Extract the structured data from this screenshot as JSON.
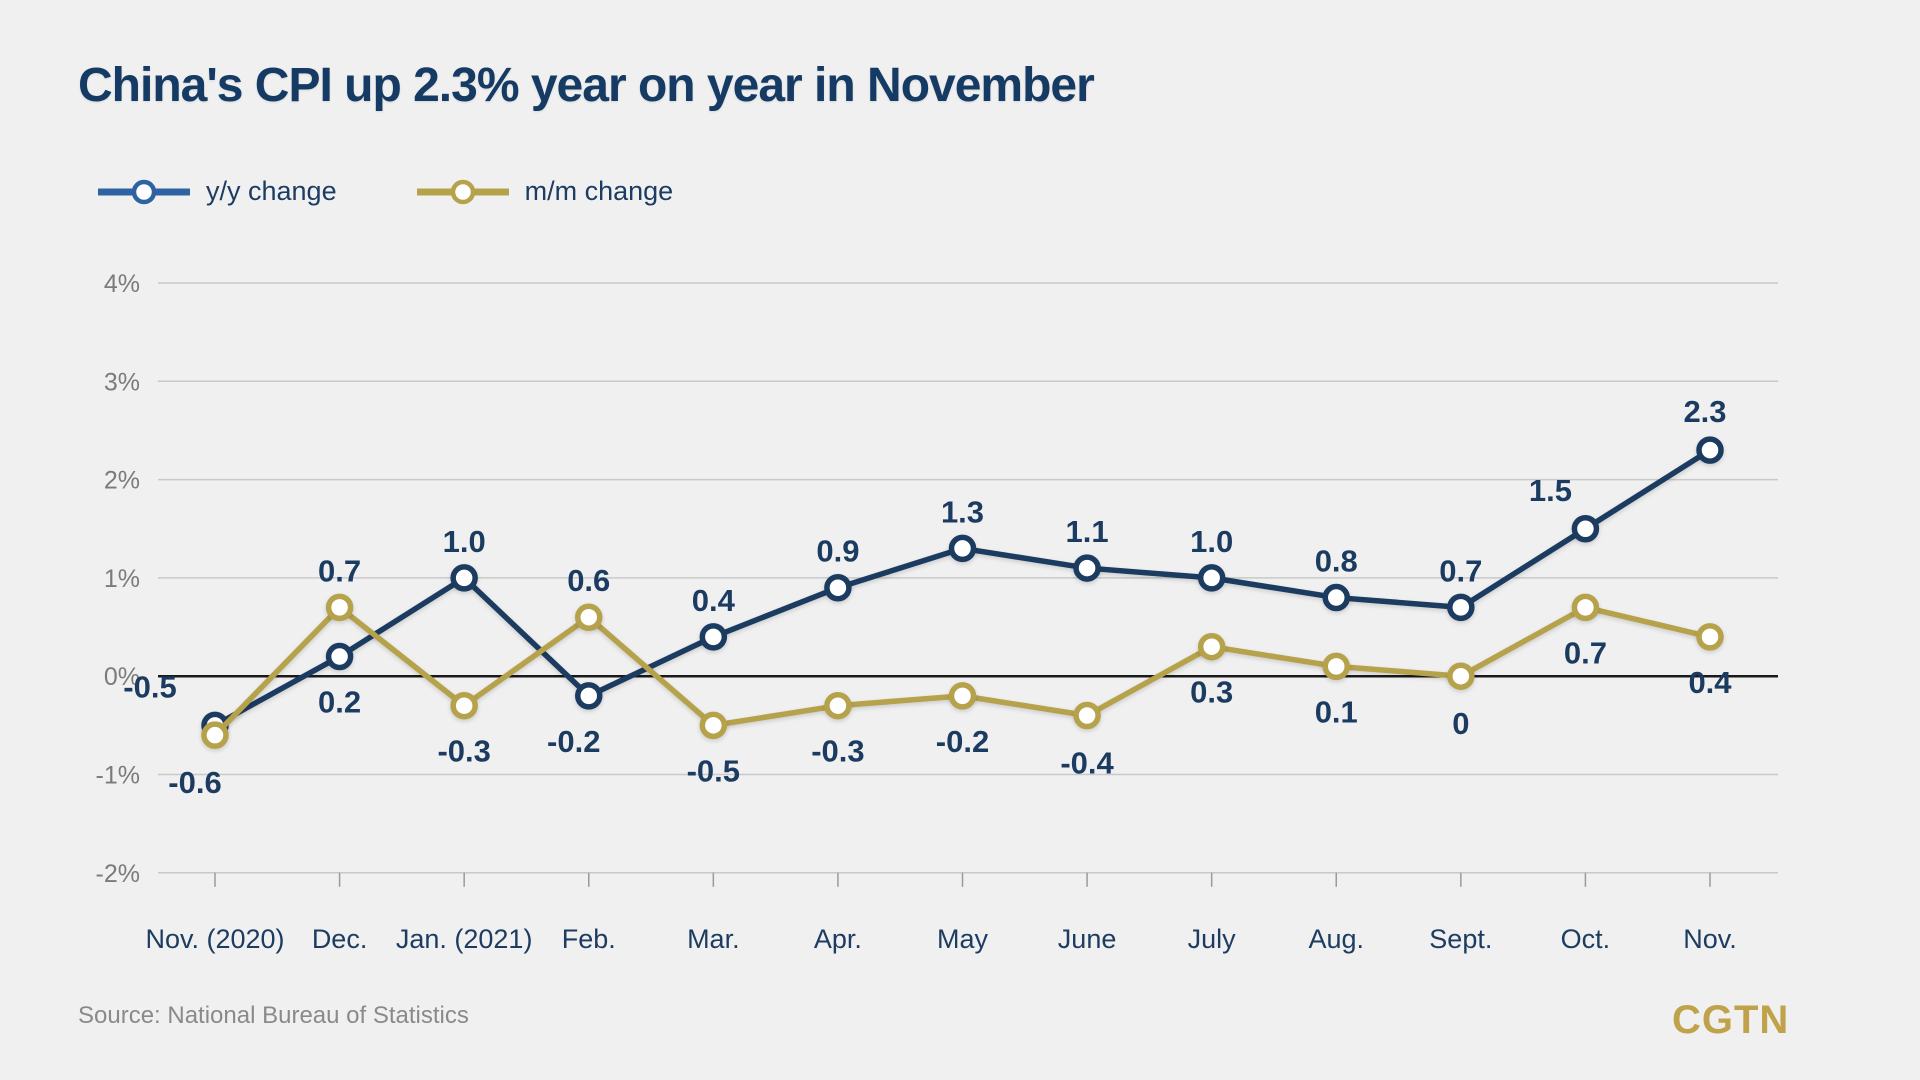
{
  "header": {
    "title": "China's CPI up 2.3% year on year in November"
  },
  "legend": {
    "items": [
      {
        "label": "y/y change",
        "color": "#2e62a3"
      },
      {
        "label": "m/m change",
        "color": "#b5a24b"
      }
    ]
  },
  "chart_data": {
    "type": "line",
    "title": "China's CPI up 2.3% year on year in November",
    "categories": [
      "Nov. (2020)",
      "Dec.",
      "Jan. (2021)",
      "Feb.",
      "Mar.",
      "Apr.",
      "May",
      "June",
      "July",
      "Aug.",
      "Sept.",
      "Oct.",
      "Nov."
    ],
    "series": [
      {
        "name": "y/y change",
        "line_color": "#1c3b60",
        "marker": "circle-white-fill",
        "values": [
          -0.5,
          0.2,
          1.0,
          -0.2,
          0.4,
          0.9,
          1.3,
          1.1,
          1.0,
          0.8,
          0.7,
          1.5,
          2.3
        ],
        "labels": [
          "-0.5",
          "0.2",
          "1.0",
          "-0.2",
          "0.4",
          "0.9",
          "1.3",
          "1.1",
          "1.0",
          "0.8",
          "0.7",
          "1.5",
          "2.3"
        ],
        "label_offsets": [
          [
            -65,
            -28
          ],
          [
            0,
            56
          ],
          [
            0,
            -26
          ],
          [
            -15,
            56
          ],
          [
            0,
            -26
          ],
          [
            0,
            -26
          ],
          [
            0,
            -26
          ],
          [
            0,
            -26
          ],
          [
            0,
            -26
          ],
          [
            0,
            -26
          ],
          [
            0,
            -26
          ],
          [
            -35,
            -28
          ],
          [
            -5,
            -28
          ]
        ]
      },
      {
        "name": "m/m change",
        "line_color": "#b5a24b",
        "marker": "circle-white-fill",
        "values": [
          -0.6,
          0.7,
          -0.3,
          0.6,
          -0.5,
          -0.3,
          -0.2,
          -0.4,
          0.3,
          0.1,
          0,
          0.7,
          0.4
        ],
        "labels": [
          "-0.6",
          "0.7",
          "-0.3",
          "0.6",
          "-0.5",
          "-0.3",
          "-0.2",
          "-0.4",
          "0.3",
          "0.1",
          "0",
          "0.7",
          "0.4"
        ],
        "label_offsets": [
          [
            -20,
            58
          ],
          [
            0,
            -26
          ],
          [
            0,
            56
          ],
          [
            0,
            -26
          ],
          [
            0,
            56
          ],
          [
            0,
            56
          ],
          [
            0,
            56
          ],
          [
            0,
            58
          ],
          [
            0,
            56
          ],
          [
            0,
            56
          ],
          [
            0,
            58
          ],
          [
            0,
            56
          ],
          [
            0,
            56
          ]
        ]
      }
    ],
    "y_ticks": [
      {
        "value": 4,
        "label": "4%"
      },
      {
        "value": 3,
        "label": "3%"
      },
      {
        "value": 2,
        "label": "2%"
      },
      {
        "value": 1,
        "label": "1%"
      },
      {
        "value": 0,
        "label": "0%"
      },
      {
        "value": -1,
        "label": "-1%"
      },
      {
        "value": -2,
        "label": "-2%"
      }
    ],
    "ylim": [
      -2,
      4
    ],
    "zero_baseline": 0,
    "grid": "horizontal",
    "legend_position": "top-left",
    "value_label_color": "#1c3b60",
    "axis_tick_color": "#7b7b7b",
    "grid_color": "#c9c9c9",
    "zero_line_color": "#1a1a1a"
  },
  "footer": {
    "source": "Source: National Bureau of Statistics",
    "brand": "CGTN",
    "brand_color": "#bfa24a"
  }
}
